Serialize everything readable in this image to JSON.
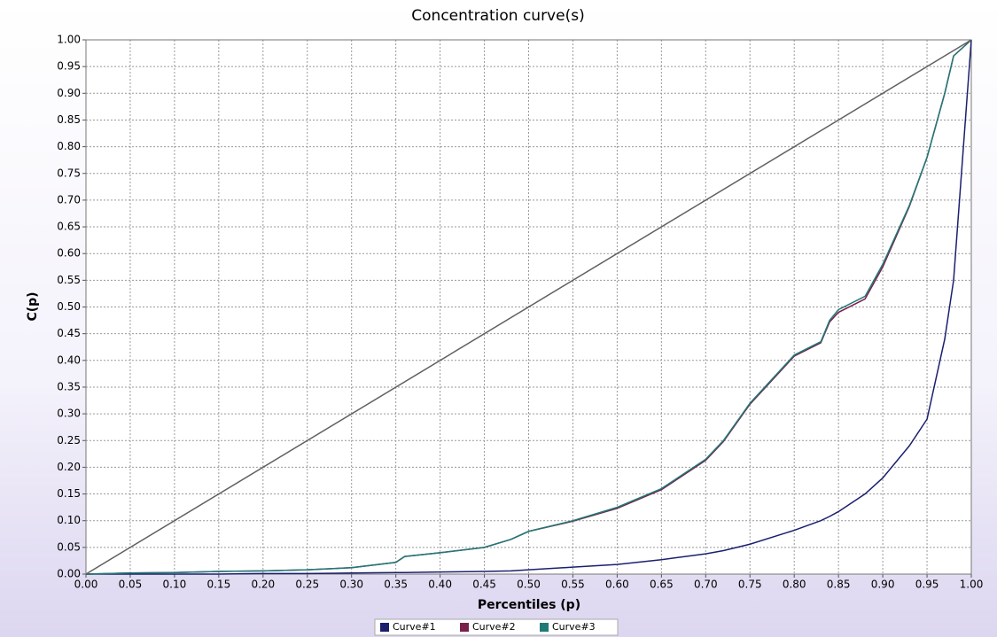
{
  "chart_data": {
    "type": "line",
    "title": "Concentration curve(s)",
    "x_label": "Percentiles (p)",
    "y_label": "C(p)",
    "x": [
      0,
      0.05,
      0.1,
      0.15,
      0.2,
      0.25,
      0.3,
      0.35,
      0.36,
      0.4,
      0.45,
      0.48,
      0.5,
      0.55,
      0.6,
      0.65,
      0.7,
      0.72,
      0.75,
      0.8,
      0.83,
      0.84,
      0.85,
      0.88,
      0.9,
      0.93,
      0.95,
      0.97,
      0.98,
      1.0
    ],
    "series": [
      {
        "name": "Curve#1",
        "color": "#1a1f6e",
        "values": [
          0,
          0,
          0,
          0,
          0.001,
          0.001,
          0.002,
          0.003,
          0.003,
          0.004,
          0.005,
          0.006,
          0.008,
          0.013,
          0.018,
          0.027,
          0.038,
          0.044,
          0.056,
          0.082,
          0.1,
          0.108,
          0.117,
          0.15,
          0.18,
          0.24,
          0.29,
          0.44,
          0.55,
          1.0
        ]
      },
      {
        "name": "Curve#2",
        "color": "#7a1f4a",
        "values": [
          0,
          0.002,
          0.003,
          0.005,
          0.006,
          0.008,
          0.012,
          0.022,
          0.033,
          0.04,
          0.05,
          0.065,
          0.08,
          0.099,
          0.123,
          0.158,
          0.213,
          0.248,
          0.318,
          0.408,
          0.433,
          0.472,
          0.49,
          0.515,
          0.575,
          0.688,
          0.78,
          0.9,
          0.97,
          1.0
        ]
      },
      {
        "name": "Curve#3",
        "color": "#1f7a78",
        "values": [
          0,
          0.002,
          0.003,
          0.005,
          0.006,
          0.008,
          0.012,
          0.022,
          0.033,
          0.04,
          0.05,
          0.065,
          0.08,
          0.1,
          0.125,
          0.16,
          0.215,
          0.25,
          0.32,
          0.41,
          0.435,
          0.475,
          0.495,
          0.52,
          0.58,
          0.69,
          0.78,
          0.9,
          0.97,
          1.0
        ]
      },
      {
        "color": "#606060",
        "x": [
          0,
          1
        ],
        "values": [
          0,
          1
        ]
      }
    ],
    "xlim": [
      0,
      1
    ],
    "ylim": [
      0,
      1
    ],
    "xticks": [
      {
        "value": 0,
        "label": "0.00"
      },
      {
        "value": 0.05,
        "label": "0.05"
      },
      {
        "value": 0.1,
        "label": "0.10"
      },
      {
        "value": 0.15,
        "label": "0.15"
      },
      {
        "value": 0.2,
        "label": "0.20"
      },
      {
        "value": 0.25,
        "label": "0.25"
      },
      {
        "value": 0.3,
        "label": "0.30"
      },
      {
        "value": 0.35,
        "label": "0.35"
      },
      {
        "value": 0.4,
        "label": "0.40"
      },
      {
        "value": 0.45,
        "label": "0.45"
      },
      {
        "value": 0.5,
        "label": "0.50"
      },
      {
        "value": 0.55,
        "label": "0.55"
      },
      {
        "value": 0.6,
        "label": "0.60"
      },
      {
        "value": 0.65,
        "label": "0.65"
      },
      {
        "value": 0.7,
        "label": "0.70"
      },
      {
        "value": 0.75,
        "label": "0.75"
      },
      {
        "value": 0.8,
        "label": "0.80"
      },
      {
        "value": 0.85,
        "label": "0.85"
      },
      {
        "value": 0.9,
        "label": "0.90"
      },
      {
        "value": 0.95,
        "label": "0.95"
      },
      {
        "value": 1,
        "label": "1.00"
      }
    ],
    "yticks": [
      {
        "value": 0,
        "label": "0.00"
      },
      {
        "value": 0.05,
        "label": "0.05"
      },
      {
        "value": 0.1,
        "label": "0.10"
      },
      {
        "value": 0.15,
        "label": "0.15"
      },
      {
        "value": 0.2,
        "label": "0.20"
      },
      {
        "value": 0.25,
        "label": "0.25"
      },
      {
        "value": 0.3,
        "label": "0.30"
      },
      {
        "value": 0.35,
        "label": "0.35"
      },
      {
        "value": 0.4,
        "label": "0.40"
      },
      {
        "value": 0.45,
        "label": "0.45"
      },
      {
        "value": 0.5,
        "label": "0.50"
      },
      {
        "value": 0.55,
        "label": "0.55"
      },
      {
        "value": 0.6,
        "label": "0.60"
      },
      {
        "value": 0.65,
        "label": "0.65"
      },
      {
        "value": 0.7,
        "label": "0.70"
      },
      {
        "value": 0.75,
        "label": "0.75"
      },
      {
        "value": 0.8,
        "label": "0.80"
      },
      {
        "value": 0.85,
        "label": "0.85"
      },
      {
        "value": 0.9,
        "label": "0.90"
      },
      {
        "value": 0.95,
        "label": "0.95"
      },
      {
        "value": 1,
        "label": "1.00"
      }
    ],
    "grid": true,
    "legend": "bottom"
  }
}
